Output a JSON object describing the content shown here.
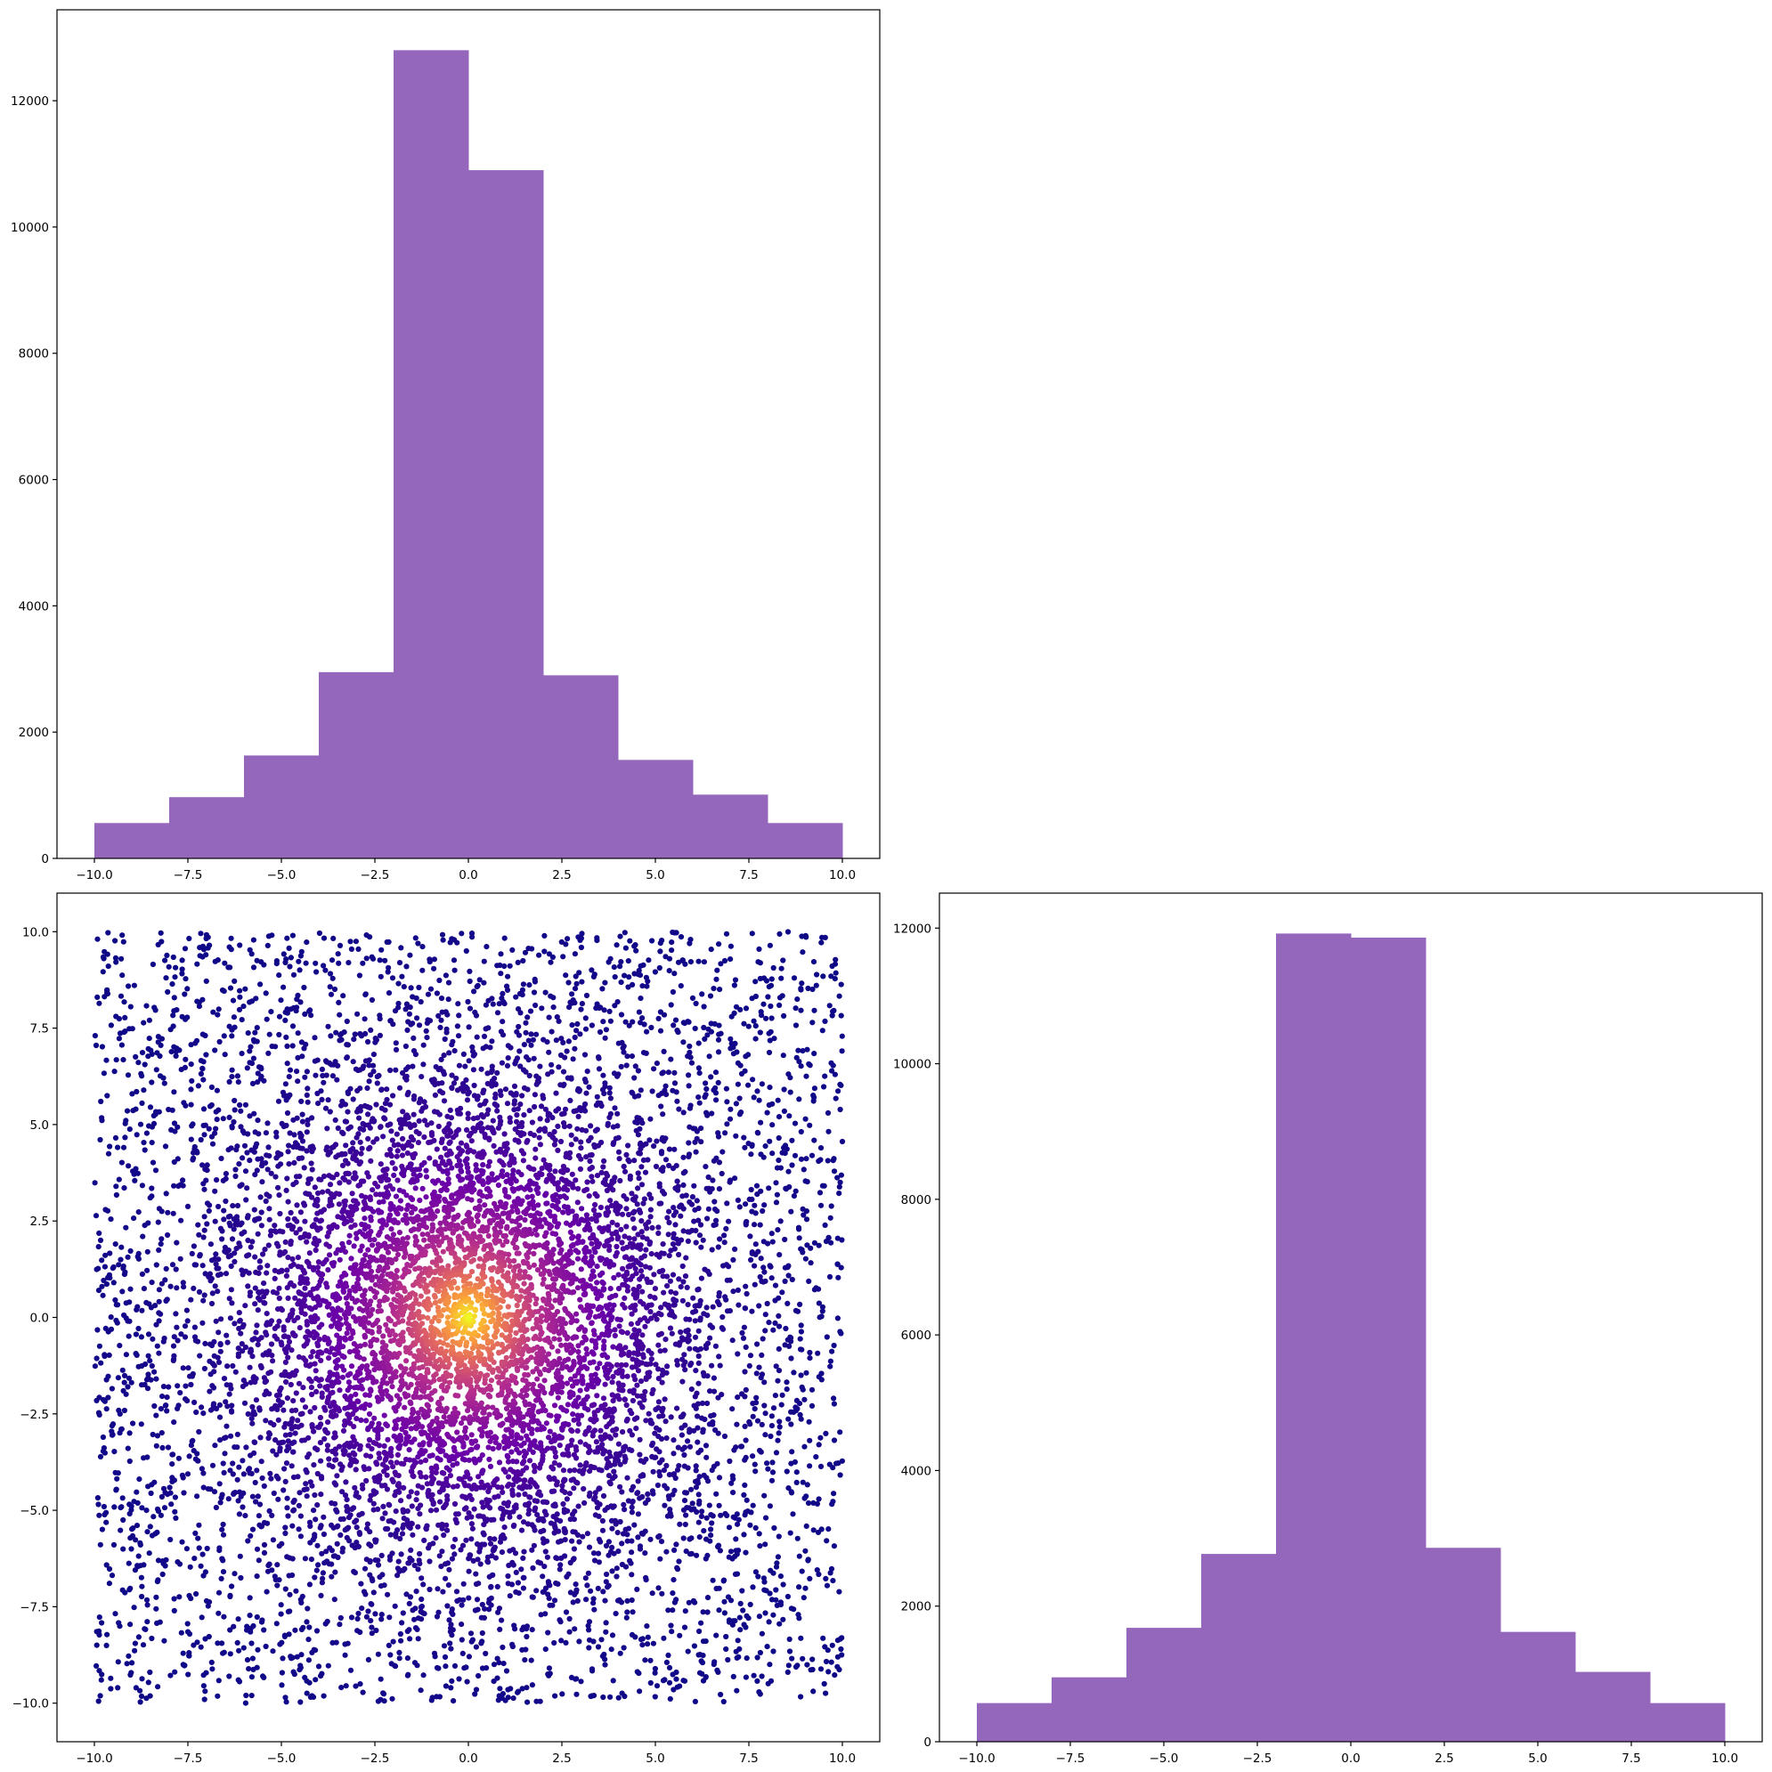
{
  "chart_data": [
    {
      "panel": "top-left",
      "type": "bar",
      "subtype": "histogram",
      "bin_edges": [
        -10,
        -8,
        -6,
        -4,
        -2,
        0,
        2,
        4,
        6,
        8,
        10
      ],
      "values": [
        560,
        970,
        1630,
        2950,
        12800,
        10900,
        2900,
        1560,
        1010,
        560
      ],
      "color": "#9467bd",
      "xlim": [
        -11,
        11
      ],
      "ylim": [
        0,
        13440
      ],
      "xticks": [
        -10,
        -7.5,
        -5,
        -2.5,
        0,
        2.5,
        5,
        7.5,
        10
      ],
      "xtick_labels": [
        "−10.0",
        "−7.5",
        "−5.0",
        "−2.5",
        "0.0",
        "2.5",
        "5.0",
        "7.5",
        "10.0"
      ],
      "yticks": [
        0,
        2000,
        4000,
        6000,
        8000,
        10000,
        12000
      ],
      "ytick_labels": [
        "0",
        "2000",
        "4000",
        "6000",
        "8000",
        "10000",
        "12000"
      ],
      "title": "",
      "xlabel": "",
      "ylabel": ""
    },
    {
      "panel": "bottom-left",
      "type": "scatter",
      "description_of_data": "~20000 points uniformly spread over the square [-10,10]x[-10,10], denser towards the origin, colored by density (plasma colormap: dark blue at the edges, magenta, orange, yellow at the center)",
      "n_points": 20000,
      "x_range": [
        -10,
        10
      ],
      "y_range": [
        -10,
        10
      ],
      "center": [
        0,
        0
      ],
      "colormap": [
        "#0d0887",
        "#6a00a8",
        "#b12a90",
        "#e16462",
        "#fca636",
        "#f0f921"
      ],
      "xlim": [
        -11,
        11
      ],
      "ylim": [
        -11,
        11
      ],
      "xticks": [
        -10,
        -7.5,
        -5,
        -2.5,
        0,
        2.5,
        5,
        7.5,
        10
      ],
      "xtick_labels": [
        "−10.0",
        "−7.5",
        "−5.0",
        "−2.5",
        "0.0",
        "2.5",
        "5.0",
        "7.5",
        "10.0"
      ],
      "yticks": [
        -10,
        -7.5,
        -5,
        -2.5,
        0,
        2.5,
        5,
        7.5,
        10
      ],
      "ytick_labels": [
        "−10.0",
        "−7.5",
        "−5.0",
        "−2.5",
        "0.0",
        "2.5",
        "5.0",
        "7.5",
        "10.0"
      ],
      "title": "",
      "xlabel": "",
      "ylabel": ""
    },
    {
      "panel": "bottom-right",
      "type": "bar",
      "subtype": "histogram",
      "bin_edges": [
        -10,
        -8,
        -6,
        -4,
        -2,
        0,
        2,
        4,
        6,
        8,
        10
      ],
      "values": [
        570,
        950,
        1680,
        2770,
        11920,
        11860,
        2860,
        1620,
        1030,
        570
      ],
      "color": "#9467bd",
      "xlim": [
        -11,
        11
      ],
      "ylim": [
        0,
        12516
      ],
      "xticks": [
        -10,
        -7.5,
        -5,
        -2.5,
        0,
        2.5,
        5,
        7.5,
        10
      ],
      "xtick_labels": [
        "−10.0",
        "−7.5",
        "−5.0",
        "−2.5",
        "0.0",
        "2.5",
        "5.0",
        "7.5",
        "10.0"
      ],
      "yticks": [
        0,
        2000,
        4000,
        6000,
        8000,
        10000,
        12000
      ],
      "ytick_labels": [
        "0",
        "2000",
        "4000",
        "6000",
        "8000",
        "10000",
        "12000"
      ],
      "title": "",
      "xlabel": "",
      "ylabel": ""
    }
  ]
}
